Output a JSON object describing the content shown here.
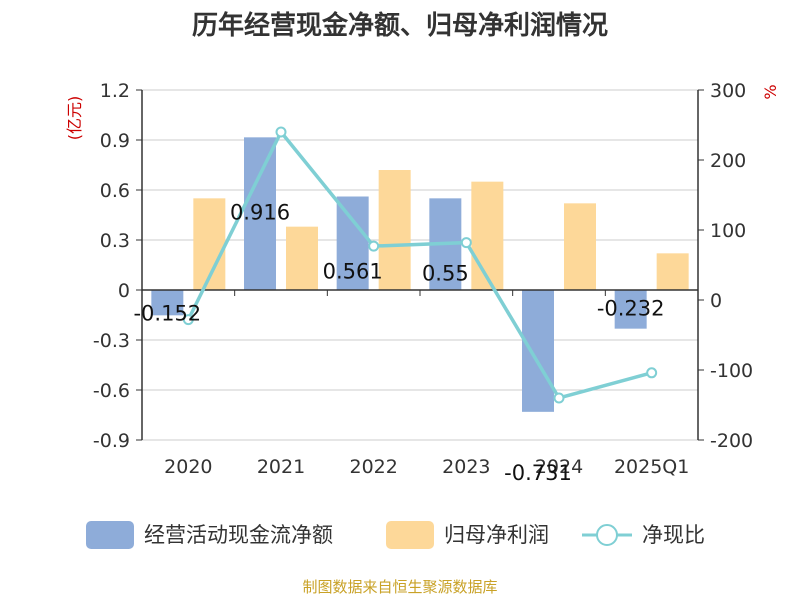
{
  "chart_data": {
    "type": "bar",
    "title": "历年经营现金净额、归母净利润情况",
    "categories": [
      "2020",
      "2021",
      "2022",
      "2023",
      "2024",
      "2025Q1"
    ],
    "series": [
      {
        "name": "经营活动现金流净额",
        "values": [
          -0.152,
          0.916,
          0.561,
          0.55,
          -0.731,
          -0.232
        ],
        "color": "#8eacd9",
        "axis": "left",
        "data_labels": [
          "-0.152",
          "0.916",
          "0.561",
          "0.55",
          "-0.731",
          "-0.232"
        ]
      },
      {
        "name": "归母净利润",
        "values": [
          0.55,
          0.38,
          0.72,
          0.65,
          0.52,
          0.22
        ],
        "color": "#fdd899",
        "axis": "left"
      },
      {
        "name": "净现比",
        "type": "line",
        "values": [
          -28,
          240,
          77,
          82,
          -140,
          -104
        ],
        "color": "#7fcfd4",
        "axis": "right"
      }
    ],
    "y_left": {
      "unit": "(亿元)",
      "ylim": [
        -0.9,
        1.2
      ],
      "ticks": [
        "1.2",
        "0.9",
        "0.6",
        "0.3",
        "0",
        "-0.3",
        "-0.6",
        "-0.9"
      ]
    },
    "y_right": {
      "unit": "%",
      "ylim": [
        -200,
        300
      ],
      "ticks": [
        "300",
        "200",
        "100",
        "0",
        "-100",
        "-200"
      ]
    },
    "grid": true,
    "legend": "bottom"
  },
  "source": "制图数据来自恒生聚源数据库"
}
